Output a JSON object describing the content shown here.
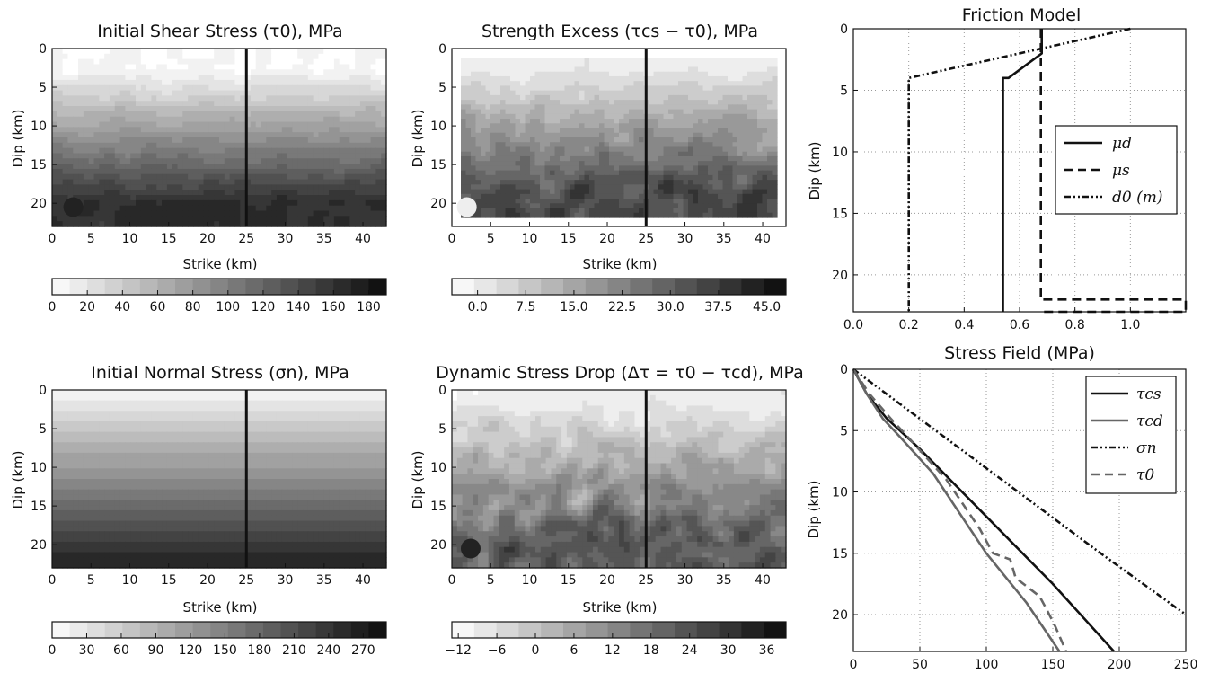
{
  "colors": {
    "foreground": "#111111",
    "background": "#ffffff",
    "line_gray": "#666666"
  },
  "chart_data": [
    {
      "id": "shear",
      "type": "heatmap",
      "title": "Initial Shear Stress (τ0), MPa",
      "xlabel": "Strike (km)",
      "ylabel": "Dip (km)",
      "xlim": [
        0,
        43
      ],
      "ylim": [
        23,
        0
      ],
      "xticks": [
        "0",
        "5",
        "10",
        "15",
        "20",
        "25",
        "30",
        "35",
        "40"
      ],
      "yticks": [
        "0",
        "5",
        "10",
        "15",
        "20"
      ],
      "vertical_line_x": 25,
      "hypocenter": {
        "x": 1.8,
        "y": 20.5,
        "shade": "dark"
      },
      "field": {
        "kind": "layered",
        "gmin": 0.97,
        "gmax": 0.18,
        "noise": 0.02,
        "floor": 0.28
      },
      "colorbar": {
        "min": 0,
        "max": 190,
        "ticks": [
          "0",
          "20",
          "40",
          "60",
          "80",
          "100",
          "120",
          "140",
          "160",
          "180"
        ],
        "tick_values": [
          0,
          20,
          40,
          60,
          80,
          100,
          120,
          140,
          160,
          180
        ],
        "levels": 19
      }
    },
    {
      "id": "strength",
      "type": "heatmap",
      "title": "Strength Excess (τcs − τ0), MPa",
      "xlabel": "Strike (km)",
      "ylabel": "Dip (km)",
      "xlim": [
        0,
        43
      ],
      "ylim": [
        23,
        0
      ],
      "xticks": [
        "0",
        "5",
        "10",
        "15",
        "20",
        "25",
        "30",
        "35",
        "40"
      ],
      "yticks": [
        "0",
        "5",
        "10",
        "15",
        "20"
      ],
      "vertical_line_x": 25,
      "hypocenter": {
        "x": 1.0,
        "y": 20.5,
        "shade": "light"
      },
      "field": {
        "kind": "noisy",
        "gmin": 0.93,
        "gmax": 0.3,
        "noise": 0.16,
        "floor": 0.42
      },
      "colorbar": {
        "min": -4,
        "max": 48,
        "ticks": [
          "0.0",
          "7.5",
          "15.0",
          "22.5",
          "30.0",
          "37.5",
          "45.0"
        ],
        "tick_values": [
          0,
          7.5,
          15,
          22.5,
          30,
          37.5,
          45
        ],
        "levels": 15
      }
    },
    {
      "id": "normal",
      "type": "heatmap",
      "title": "Initial Normal Stress (σn), MPa",
      "xlabel": "Strike (km)",
      "ylabel": "Dip (km)",
      "xlim": [
        0,
        43
      ],
      "ylim": [
        23,
        0
      ],
      "xticks": [
        "0",
        "5",
        "10",
        "15",
        "20",
        "25",
        "30",
        "35",
        "40"
      ],
      "yticks": [
        "0",
        "5",
        "10",
        "15",
        "20"
      ],
      "vertical_line_x": 25,
      "hypocenter": null,
      "field": {
        "kind": "bands",
        "gmin": 0.97,
        "gmax": 0.12,
        "noise": 0.0,
        "floor": 0.22
      },
      "colorbar": {
        "min": 0,
        "max": 290,
        "ticks": [
          "0",
          "30",
          "60",
          "90",
          "120",
          "150",
          "180",
          "210",
          "240",
          "270"
        ],
        "tick_values": [
          0,
          30,
          60,
          90,
          120,
          150,
          180,
          210,
          240,
          270
        ],
        "levels": 19
      }
    },
    {
      "id": "drop",
      "type": "heatmap",
      "title": "Dynamic Stress Drop (Δτ = τ0 − τcd), MPa",
      "xlabel": "Strike (km)",
      "ylabel": "Dip (km)",
      "xlim": [
        0,
        43
      ],
      "ylim": [
        23,
        0
      ],
      "xticks": [
        "0",
        "5",
        "10",
        "15",
        "20",
        "25",
        "30",
        "35",
        "40"
      ],
      "yticks": [
        "0",
        "5",
        "10",
        "15",
        "20"
      ],
      "vertical_line_x": 25,
      "hypocenter": {
        "x": 1.5,
        "y": 20.5,
        "shade": "dark"
      },
      "field": {
        "kind": "noisy",
        "gmin": 0.94,
        "gmax": 0.36,
        "noise": 0.22,
        "floor": 0.45
      },
      "colorbar": {
        "min": -13,
        "max": 39,
        "ticks": [
          "−12",
          "−6",
          "0",
          "6",
          "12",
          "18",
          "24",
          "30",
          "36"
        ],
        "tick_values": [
          -12,
          -6,
          0,
          6,
          12,
          18,
          24,
          30,
          36
        ],
        "levels": 15
      }
    },
    {
      "id": "friction",
      "type": "line",
      "title": "Friction Model",
      "xlabel": "",
      "ylabel": "Dip (km)",
      "xlim": [
        0,
        1.2
      ],
      "ylim": [
        23,
        0
      ],
      "xticks": [
        "0.0",
        "0.2",
        "0.4",
        "0.6",
        "0.8",
        "1.0"
      ],
      "xtick_values": [
        0,
        0.2,
        0.4,
        0.6,
        0.8,
        1.0
      ],
      "yticks": [
        "0",
        "5",
        "10",
        "15",
        "20"
      ],
      "ytick_values": [
        0,
        5,
        10,
        15,
        20
      ],
      "grid": true,
      "legend_position": "center-right",
      "series": [
        {
          "name": "μd",
          "style": "solid",
          "points": [
            [
              0.68,
              0
            ],
            [
              0.68,
              2
            ],
            [
              0.56,
              4
            ],
            [
              0.54,
              4
            ],
            [
              0.54,
              23
            ]
          ]
        },
        {
          "name": "μs",
          "style": "dashed",
          "points": [
            [
              0.677,
              0
            ],
            [
              0.677,
              22
            ],
            [
              1.2,
              22
            ],
            [
              1.2,
              23
            ],
            [
              0.677,
              23
            ]
          ]
        },
        {
          "name": "d0 (m)",
          "style": "dashdot",
          "points": [
            [
              1.0,
              0
            ],
            [
              0.2,
              4
            ],
            [
              0.2,
              23
            ]
          ]
        }
      ]
    },
    {
      "id": "stress",
      "type": "line",
      "title": "Stress Field (MPa)",
      "xlabel": "",
      "ylabel": "Dip (km)",
      "xlim": [
        0,
        250
      ],
      "ylim": [
        23,
        0
      ],
      "xticks": [
        "0",
        "50",
        "100",
        "150",
        "200",
        "250"
      ],
      "xtick_values": [
        0,
        50,
        100,
        150,
        200,
        250
      ],
      "yticks": [
        "0",
        "5",
        "10",
        "15",
        "20"
      ],
      "ytick_values": [
        0,
        5,
        10,
        15,
        20
      ],
      "grid": true,
      "legend_position": "top-right",
      "series": [
        {
          "name": "τcs",
          "style": "solid",
          "points": [
            [
              0,
              0
            ],
            [
              10,
              2
            ],
            [
              25,
              4
            ],
            [
              50,
              6.5
            ],
            [
              100,
              12
            ],
            [
              150,
              17.5
            ],
            [
              196,
              23
            ]
          ]
        },
        {
          "name": "τcd",
          "style": "solid-gray",
          "points": [
            [
              0,
              0
            ],
            [
              10,
              2
            ],
            [
              22,
              4
            ],
            [
              35,
              5.5
            ],
            [
              60,
              8.5
            ],
            [
              100,
              15
            ],
            [
              130,
              19
            ],
            [
              155,
              23
            ]
          ]
        },
        {
          "name": "σn",
          "style": "dashdot",
          "points": [
            [
              0,
              0
            ],
            [
              62,
              5
            ],
            [
              124,
              10
            ],
            [
              186,
              15
            ],
            [
              250,
              20
            ]
          ]
        },
        {
          "name": "τ0",
          "style": "dashed",
          "points": [
            [
              0,
              0
            ],
            [
              12,
              2
            ],
            [
              28,
              4
            ],
            [
              45,
              6
            ],
            [
              70,
              9
            ],
            [
              95,
              13
            ],
            [
              105,
              15
            ],
            [
              118,
              15.5
            ],
            [
              122,
              17
            ],
            [
              140,
              18.5
            ],
            [
              145,
              19.5
            ],
            [
              152,
              21
            ],
            [
              160,
              23
            ]
          ]
        }
      ]
    }
  ]
}
